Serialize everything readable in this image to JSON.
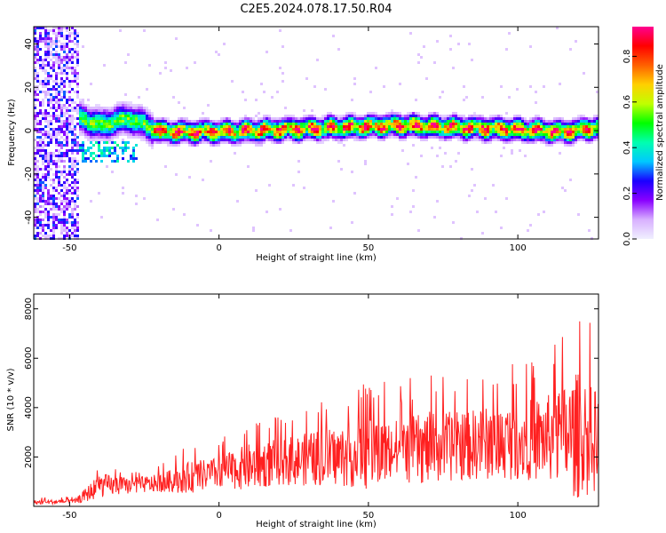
{
  "title": "C2E5.2024.078.17.50.R04",
  "chart_data": [
    {
      "type": "heatmap",
      "xlabel": "Height of straight line (km)",
      "ylabel": "Frequency (Hz)",
      "xlim": [
        -62,
        127
      ],
      "ylim": [
        -50,
        48
      ],
      "xticks": [
        -50,
        0,
        50,
        100
      ],
      "yticks": [
        -40,
        -20,
        0,
        20,
        40
      ],
      "colorbar": {
        "label": "Normalized spectral amplitude",
        "range": [
          0,
          0.93
        ],
        "ticks": [
          0.0,
          0.2,
          0.4,
          0.6,
          0.8
        ],
        "colors": [
          "#f0f0ff",
          "#d8b0ff",
          "#8a00ff",
          "#1a00ff",
          "#00c8ff",
          "#00ffb0",
          "#00ff00",
          "#c0ff00",
          "#ffd000",
          "#ff6000",
          "#ff0000",
          "#ff0090"
        ]
      },
      "ridge": {
        "description_x": [
          -46,
          -40,
          -35,
          -30,
          -25,
          -20,
          -10,
          0,
          20,
          40,
          60,
          80,
          100,
          115,
          127
        ],
        "description_freq": [
          6,
          3,
          5,
          6,
          3,
          0,
          0,
          0,
          1,
          2,
          3,
          2,
          1,
          0,
          2
        ]
      }
    },
    {
      "type": "line",
      "xlabel": "Height of straight line (km)",
      "ylabel": "SNR (10 * v/v)",
      "xlim": [
        -62,
        127
      ],
      "ylim": [
        0,
        8600
      ],
      "xticks": [
        -50,
        0,
        50,
        100
      ],
      "yticks": [
        2000,
        4000,
        6000,
        8000
      ],
      "color": "#ff2020",
      "envelope": {
        "x": [
          -62,
          -48,
          -45,
          -40,
          -30,
          -20,
          -10,
          0,
          10,
          20,
          30,
          40,
          50,
          60,
          70,
          80,
          90,
          100,
          110,
          120,
          127
        ],
        "median": [
          150,
          200,
          400,
          800,
          800,
          900,
          1100,
          1300,
          1500,
          1700,
          1800,
          1900,
          2000,
          2100,
          2200,
          2300,
          2400,
          2500,
          2600,
          2600,
          2400
        ],
        "peak": [
          350,
          400,
          1000,
          1900,
          1500,
          1700,
          2500,
          2700,
          3600,
          3800,
          4200,
          4600,
          5200,
          5000,
          5500,
          5400,
          5700,
          6000,
          6500,
          8400,
          7000
        ]
      }
    }
  ]
}
